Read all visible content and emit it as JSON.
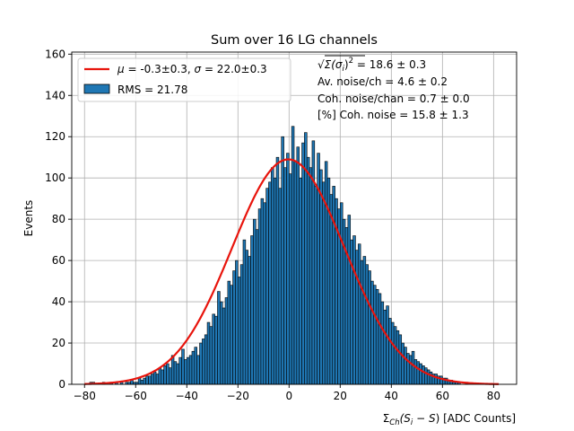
{
  "chart_data": {
    "type": "bar",
    "title": "Sum over 16 LG channels",
    "ylabel": "Events",
    "xlabel_parts": {
      "prefix": "Σ",
      "sub": "Ch",
      "expr": "(S",
      "expr_sub": "i",
      "minus": " − ",
      "sbar": "S",
      "suffix": ") [ADC Counts]"
    },
    "xlim": [
      -85,
      89
    ],
    "ylim": [
      0,
      161
    ],
    "xticks": [
      -80,
      -60,
      -40,
      -20,
      0,
      20,
      40,
      60,
      80
    ],
    "yticks": [
      0,
      20,
      40,
      60,
      80,
      100,
      120,
      140,
      160
    ],
    "grid": true,
    "bin_start": -80,
    "bin_width": 1,
    "values": [
      0,
      0,
      1,
      1,
      0,
      0,
      0,
      1,
      0,
      0,
      1,
      0,
      1,
      0,
      1,
      0,
      1,
      1,
      2,
      1,
      1,
      3,
      2,
      3,
      4,
      4,
      5,
      6,
      5,
      8,
      7,
      9,
      10,
      8,
      14,
      11,
      10,
      13,
      17,
      12,
      13,
      14,
      16,
      18,
      14,
      20,
      22,
      24,
      30,
      28,
      34,
      33,
      45,
      40,
      37,
      42,
      50,
      48,
      55,
      60,
      52,
      58,
      70,
      65,
      62,
      72,
      80,
      75,
      85,
      90,
      88,
      95,
      98,
      105,
      100,
      110,
      95,
      120,
      105,
      112,
      102,
      125,
      108,
      115,
      100,
      117,
      122,
      110,
      105,
      118,
      96,
      112,
      104,
      98,
      108,
      100,
      92,
      96,
      90,
      85,
      88,
      80,
      76,
      82,
      70,
      72,
      65,
      68,
      60,
      62,
      58,
      55,
      50,
      48,
      46,
      44,
      40,
      36,
      38,
      32,
      30,
      28,
      26,
      24,
      20,
      18,
      15,
      14,
      16,
      12,
      11,
      10,
      9,
      8,
      7,
      6,
      5,
      5,
      4,
      4,
      3,
      3,
      2,
      2,
      1,
      1,
      1,
      0,
      0,
      1,
      0,
      0,
      0,
      0,
      0,
      0,
      0,
      0,
      0,
      0,
      0
    ],
    "fit": {
      "mu": -0.3,
      "sigma": 22.0,
      "amplitude": 109,
      "x_start": -80,
      "x_end": 82,
      "color": "#e8140c"
    },
    "bar_color": "#1f77b4",
    "legend": {
      "position": "top-left",
      "fit_label": {
        "mu_sym": "μ",
        "eq1": " = -0.3±0.3, ",
        "sigma_sym": "σ",
        "eq2": " = 22.0±0.3"
      },
      "hist_label": "RMS = 21.78"
    },
    "annotations": {
      "line1_rest": " = 18.6 ± 0.3",
      "line1_formula": {
        "sqrt": "√",
        "sum": "Σ(σ",
        "sub": "i",
        "close": ")",
        "sup": "2"
      },
      "line2": "Av. noise/ch  = 4.6 ± 0.2",
      "line3": "Coh. noise/chan  = 0.7 ± 0.0",
      "line4": "[%] Coh. noise  = 15.8 ± 1.3"
    }
  }
}
